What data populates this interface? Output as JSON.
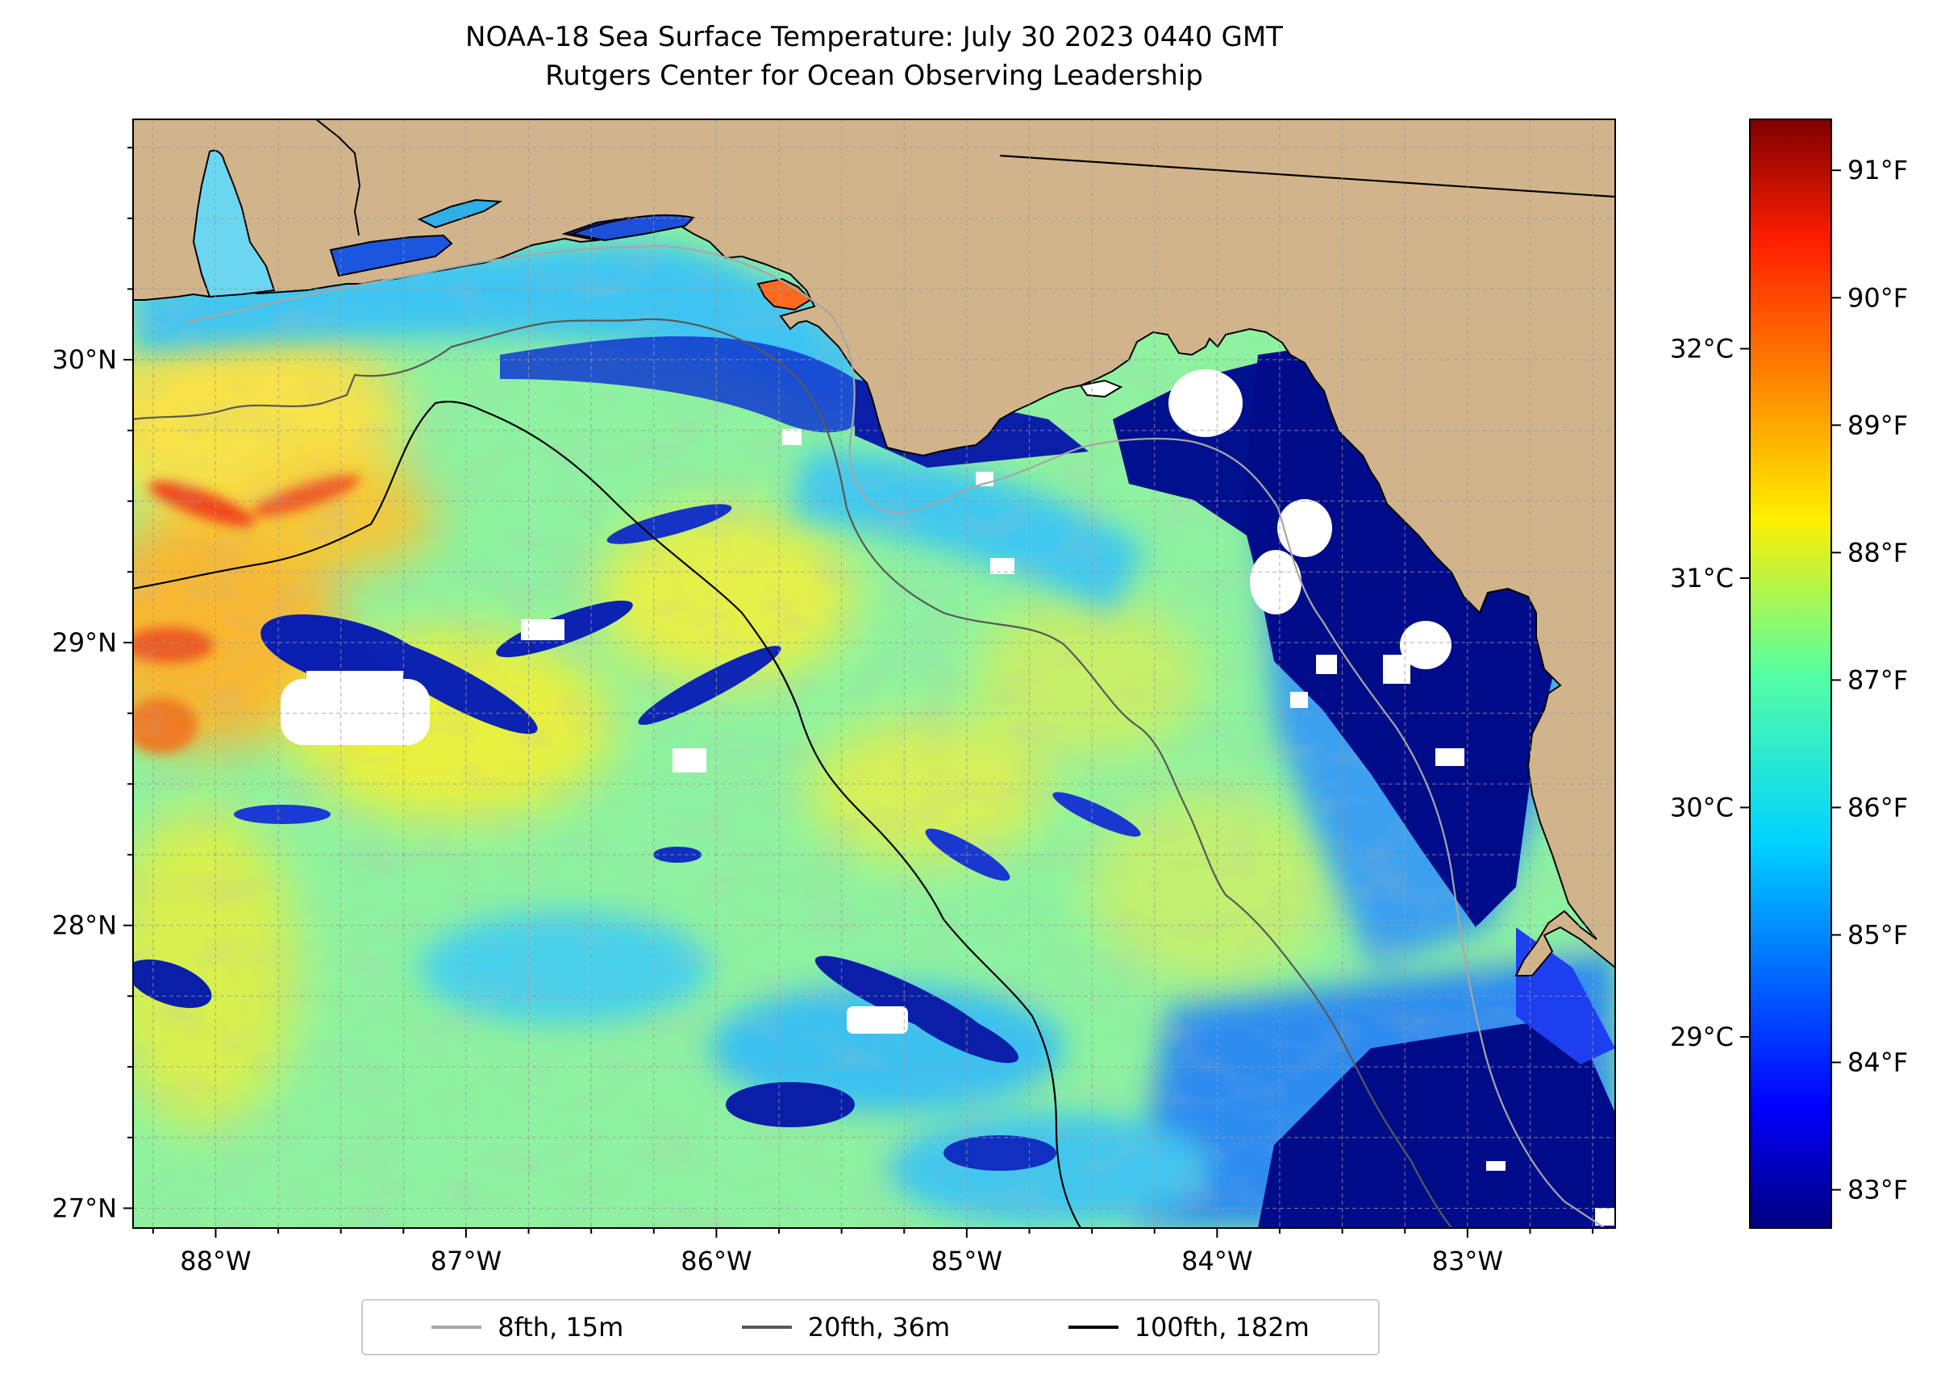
{
  "title": {
    "line1": "NOAA-18 Sea Surface Temperature: July 30 2023 0440 GMT",
    "line2": "Rutgers Center for Ocean Observing Leadership"
  },
  "map": {
    "longitude_range": [
      -88.33,
      -82.41
    ],
    "latitude_range": [
      26.93,
      30.85
    ],
    "longitude_ticks": [
      {
        "value": -88,
        "label": "88°W"
      },
      {
        "value": -87,
        "label": "87°W"
      },
      {
        "value": -86,
        "label": "86°W"
      },
      {
        "value": -85,
        "label": "85°W"
      },
      {
        "value": -84,
        "label": "84°W"
      },
      {
        "value": -83,
        "label": "83°W"
      }
    ],
    "latitude_ticks": [
      {
        "value": 30,
        "label": "30°N"
      },
      {
        "value": 29,
        "label": "29°N"
      },
      {
        "value": 28,
        "label": "28°N"
      },
      {
        "value": 27,
        "label": "27°N"
      }
    ],
    "gridlines": true,
    "grid_minor_spacing_deg": 0.25,
    "colors": {
      "land": "#d2b48c",
      "no_data": "#ffffff",
      "lake": "#a7bfe0",
      "grid": "#9a9a9a",
      "boundary": "#000000"
    }
  },
  "colorbar": {
    "colormap": "jet",
    "fahrenheit_range": [
      82.7,
      91.4
    ],
    "celsius_ticks": [
      {
        "value": 32,
        "label": "32°C"
      },
      {
        "value": 31,
        "label": "31°C"
      },
      {
        "value": 30,
        "label": "30°C"
      },
      {
        "value": 29,
        "label": "29°C"
      }
    ],
    "fahrenheit_ticks": [
      {
        "value": 91,
        "label": "91°F"
      },
      {
        "value": 90,
        "label": "90°F"
      },
      {
        "value": 89,
        "label": "89°F"
      },
      {
        "value": 88,
        "label": "88°F"
      },
      {
        "value": 87,
        "label": "87°F"
      },
      {
        "value": 86,
        "label": "86°F"
      },
      {
        "value": 85,
        "label": "85°F"
      },
      {
        "value": 84,
        "label": "84°F"
      },
      {
        "value": 83,
        "label": "83°F"
      }
    ]
  },
  "legend": {
    "placement": "bottom-center",
    "items": [
      {
        "label": "8fth, 15m",
        "color": "#a6a6a6"
      },
      {
        "label": "20fth, 36m",
        "color": "#595959"
      },
      {
        "label": "100fth, 182m",
        "color": "#000000"
      }
    ]
  }
}
